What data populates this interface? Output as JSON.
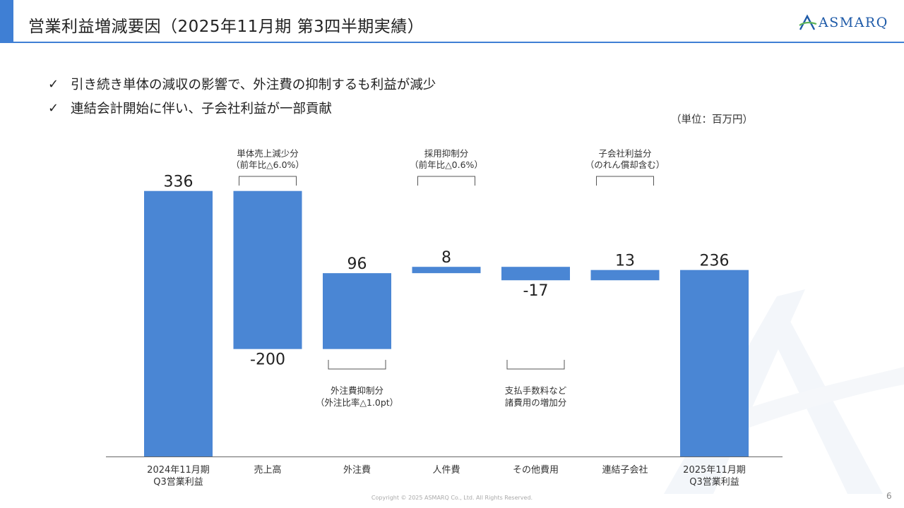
{
  "header": {
    "title": "営業利益増減要因（2025年11月期 第3四半期実績）",
    "logo_text": "ASMARQ"
  },
  "bullets": [
    {
      "icon": "check-icon",
      "text": "引き続き単体の減収の影響で、外注費の抑制するも利益が減少"
    },
    {
      "icon": "check-icon",
      "text": "連結会計開始に伴い、子会社利益が一部貢献"
    }
  ],
  "unit_label": "（単位：百万円）",
  "chart_data": {
    "type": "waterfall",
    "title": "",
    "xlabel": "",
    "ylabel": "",
    "ylim": [
      0,
      350
    ],
    "grid": false,
    "bar_color": "#4a86d4",
    "categories": [
      {
        "line1": "2024年11月期",
        "line2": "Q3営業利益"
      },
      {
        "line1": "売上高",
        "line2": ""
      },
      {
        "line1": "外注費",
        "line2": ""
      },
      {
        "line1": "人件費",
        "line2": ""
      },
      {
        "line1": "その他費用",
        "line2": ""
      },
      {
        "line1": "連結子会社",
        "line2": ""
      },
      {
        "line1": "2025年11月期",
        "line2": "Q3営業利益"
      }
    ],
    "steps": [
      {
        "kind": "total",
        "value": 336,
        "label": "336"
      },
      {
        "kind": "delta",
        "value": -200,
        "label": "-200"
      },
      {
        "kind": "delta",
        "value": 96,
        "label": "96"
      },
      {
        "kind": "delta",
        "value": 8,
        "label": "8"
      },
      {
        "kind": "delta",
        "value": -17,
        "label": "-17"
      },
      {
        "kind": "delta",
        "value": 13,
        "label": "13"
      },
      {
        "kind": "total",
        "value": 236,
        "label": "236"
      }
    ],
    "annotations": [
      {
        "index": 1,
        "position": "above",
        "line1": "単体売上減少分",
        "line2": "（前年比△6.0%）"
      },
      {
        "index": 2,
        "position": "below",
        "line1": "外注費抑制分",
        "line2": "（外注比率△1.0pt）"
      },
      {
        "index": 3,
        "position": "above",
        "line1": "採用抑制分",
        "line2": "（前年比△0.6%）"
      },
      {
        "index": 4,
        "position": "below",
        "line1": "支払手数料など",
        "line2": "諸費用の増加分"
      },
      {
        "index": 5,
        "position": "above",
        "line1": "子会社利益分",
        "line2": "（のれん償却含む）"
      }
    ]
  },
  "footer": {
    "copyright": "Copyright © 2025 ASMARQ Co., Ltd. All Rights Reserved.",
    "page_number": "6"
  },
  "colors": {
    "accent": "#3f7fd4",
    "brand": "#1e5aa8"
  }
}
